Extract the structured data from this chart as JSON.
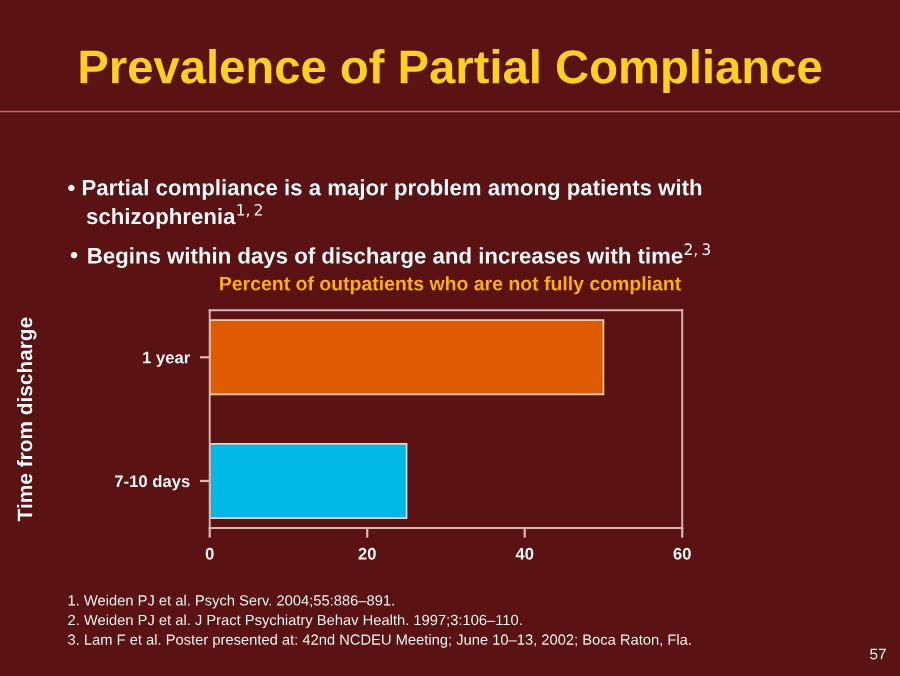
{
  "chart_data": {
    "type": "bar",
    "orientation": "horizontal",
    "title": "Prevalence of Partial Compliance",
    "subtitle": "Percent of outpatients who are not fully compliant",
    "ylabel": "Time from discharge",
    "categories": [
      "1 year",
      "7-10 days"
    ],
    "values": [
      50,
      25
    ],
    "colors": [
      "#e05a00",
      "#00b8e8"
    ],
    "xlim": [
      0,
      60
    ],
    "xticks": [
      0,
      20,
      40,
      60
    ],
    "grid": false,
    "annotations": [
      "• Partial compliance is a major problem among patients with\n   schizophrenia$^{1,2}$",
      "• Begins within days of discharge and increases with time$^{2,3}$",
      "1. Weiden PJ et al. Psych Serv. 2004;55:886–891.",
      "2. Weiden PJ et al. J Pract Psychiatry Behav Health. 1997;3:106–110.",
      "3. Lam F et al. Poster presented at: 42nd NCDEU Meeting; June 10–13, 2002; Boca Raton, Fla.",
      "57"
    ]
  }
}
